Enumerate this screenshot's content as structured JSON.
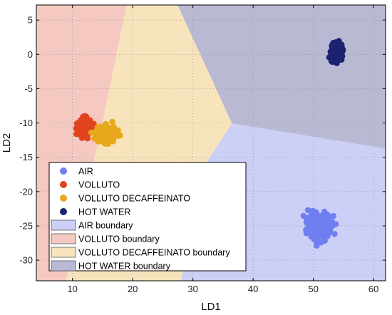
{
  "chart_data": {
    "type": "scatter",
    "xlabel": "LD1",
    "ylabel": "LD2",
    "xlim": [
      4,
      62
    ],
    "ylim": [
      -33,
      7.2
    ],
    "xticks": [
      10,
      20,
      30,
      40,
      50,
      60
    ],
    "yticks": [
      5,
      0,
      -5,
      -10,
      -15,
      -20,
      -25,
      -30
    ],
    "grid": true,
    "legend_placement": "lower-left",
    "series": [
      {
        "name": "AIR",
        "color": "#6f7ff0",
        "center": [
          50.9,
          -25.0
        ],
        "spread": [
          1.4,
          1.4
        ]
      },
      {
        "name": "VOLLUTO",
        "color": "#e0441c",
        "center": [
          12.0,
          -10.6
        ],
        "spread": [
          0.8,
          1.0
        ]
      },
      {
        "name": "VOLLUTO DECAFFEINATO",
        "color": "#e8a81c",
        "center": [
          15.6,
          -11.6
        ],
        "spread": [
          1.3,
          0.9
        ]
      },
      {
        "name": "HOT WATER",
        "color": "#1b2370",
        "center": [
          53.8,
          0.4
        ],
        "spread": [
          0.7,
          1.1
        ]
      }
    ],
    "regions": [
      {
        "name": "AIR boundary",
        "color": "#ccd0f7",
        "polygon": [
          [
            28,
            -33
          ],
          [
            32,
            -16
          ],
          [
            36.5,
            -10
          ],
          [
            62,
            -13.7
          ],
          [
            62,
            -33
          ]
        ]
      },
      {
        "name": "VOLLUTO boundary",
        "color": "#f5c9c2",
        "polygon": [
          [
            4,
            7.2
          ],
          [
            19,
            7.2
          ],
          [
            15,
            -10
          ],
          [
            9,
            -33
          ],
          [
            4,
            -33
          ]
        ]
      },
      {
        "name": "VOLLUTO DECAFFEINATO boundary",
        "color": "#f7e4bc",
        "polygon": [
          [
            19,
            7.2
          ],
          [
            27.5,
            7.2
          ],
          [
            36.5,
            -10
          ],
          [
            32,
            -16
          ],
          [
            28,
            -33
          ],
          [
            9,
            -33
          ],
          [
            15,
            -10
          ]
        ]
      },
      {
        "name": "HOT WATER boundary",
        "color": "#b9b9d4",
        "polygon": [
          [
            27.5,
            7.2
          ],
          [
            62,
            7.2
          ],
          [
            62,
            -13.7
          ],
          [
            36.5,
            -10
          ]
        ]
      }
    ]
  }
}
